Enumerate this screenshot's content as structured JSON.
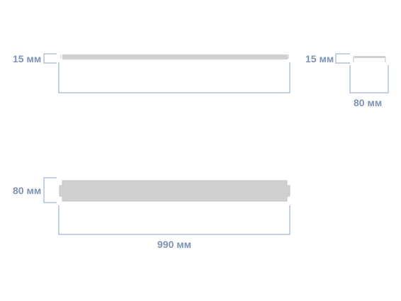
{
  "dimensions": {
    "top_view_thickness": "15 мм",
    "side_view_thickness": "15 мм",
    "side_view_width": "80 мм",
    "front_view_height": "80 мм",
    "front_view_length": "990 мм"
  },
  "colors": {
    "dimension": "#7d92b8",
    "part": "#d0d0d0"
  }
}
